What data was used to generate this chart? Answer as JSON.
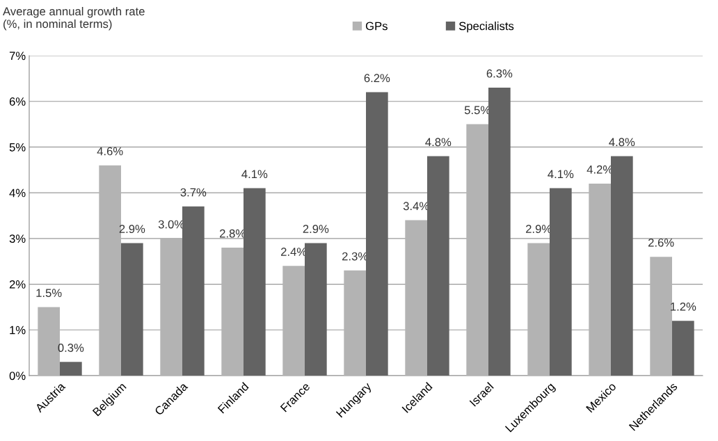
{
  "chart_data": {
    "type": "bar",
    "ylabel": "Average annual growth rate\n(%, in nominal terms)",
    "categories": [
      "Austria",
      "Belgium",
      "Canada",
      "Finland",
      "France",
      "Hungary",
      "Iceland",
      "Israel",
      "Luxembourg",
      "Mexico",
      "Netherlands"
    ],
    "series": [
      {
        "name": "GPs",
        "color": "#b3b3b3",
        "values": [
          1.5,
          4.6,
          3.0,
          2.8,
          2.4,
          2.3,
          3.4,
          5.5,
          2.9,
          4.2,
          2.6
        ],
        "value_labels": [
          "1.5%",
          "4.6%",
          "3.0%",
          "2.8%",
          "2.4%",
          "2.3%",
          "3.4%",
          "5.5%",
          "2.9%",
          "4.2%",
          "2.6%"
        ]
      },
      {
        "name": "Specialists",
        "color": "#636363",
        "values": [
          0.3,
          2.9,
          3.7,
          4.1,
          2.9,
          6.2,
          4.8,
          6.3,
          4.1,
          4.8,
          1.2
        ],
        "value_labels": [
          "0.3%",
          "2.9%",
          "3.7%",
          "4.1%",
          "2.9%",
          "6.2%",
          "4.8%",
          "6.3%",
          "4.1%",
          "4.8%",
          "1.2%"
        ]
      }
    ],
    "ylim": [
      0,
      7
    ],
    "yticks": [
      {
        "value": 0,
        "label": "0%"
      },
      {
        "value": 1,
        "label": "1%"
      },
      {
        "value": 2,
        "label": "2%"
      },
      {
        "value": 3,
        "label": "3%"
      },
      {
        "value": 4,
        "label": "4%"
      },
      {
        "value": 5,
        "label": "5%"
      },
      {
        "value": 6,
        "label": "6%"
      },
      {
        "value": 7,
        "label": "7%"
      }
    ],
    "grid": "y",
    "legend": "top"
  }
}
